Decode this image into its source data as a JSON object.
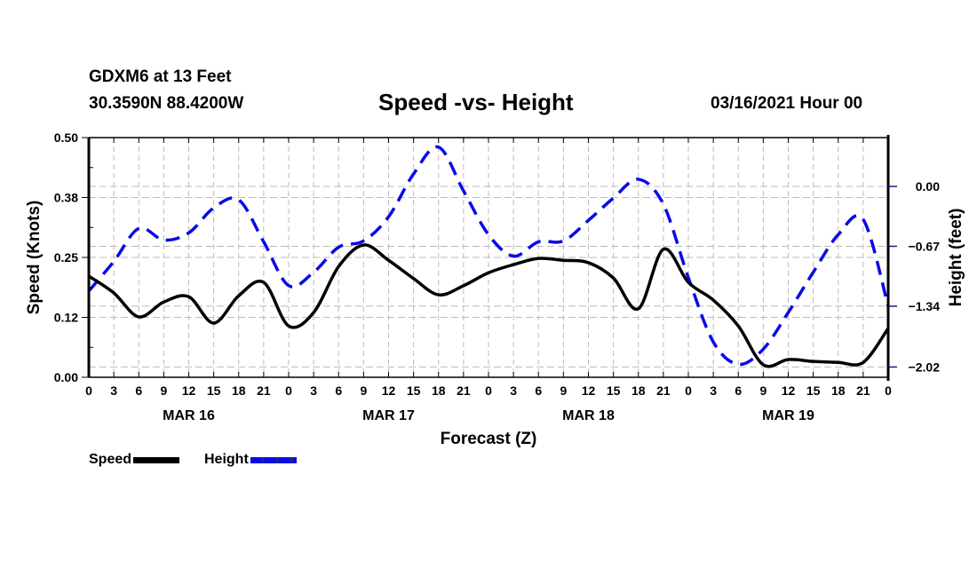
{
  "header": {
    "station": "GDXM6 at 13 Feet",
    "coords": "30.3590N 88.4200W",
    "title": "Speed -vs- Height",
    "datetime": "03/16/2021 Hour 00"
  },
  "colors": {
    "speed": "#000000",
    "height": "#0a0ae6",
    "grid": "#bbbbbb"
  },
  "chart_data": {
    "type": "line",
    "title": "Speed -vs- Height",
    "xlabel": "Forecast (Z)",
    "ylabel": "Speed (Knots)",
    "y2label": "Height (feet)",
    "x_unit": "forecast hour from 03/16/2021 00Z",
    "xlim": [
      0,
      96
    ],
    "ylim": [
      0.0,
      0.5
    ],
    "y2lim": [
      -2.135,
      0.546
    ],
    "grid": true,
    "legend": "bottom-left",
    "x_tick_labels": [
      "0",
      "3",
      "6",
      "9",
      "12",
      "15",
      "18",
      "21",
      "0",
      "3",
      "6",
      "9",
      "12",
      "15",
      "18",
      "21",
      "0",
      "3",
      "6",
      "9",
      "12",
      "15",
      "18",
      "21",
      "0",
      "3",
      "6",
      "9",
      "12",
      "15",
      "18",
      "21",
      "0"
    ],
    "date_labels": [
      {
        "label": "MAR 16",
        "hour": 12
      },
      {
        "label": "MAR 17",
        "hour": 36
      },
      {
        "label": "MAR 18",
        "hour": 60
      },
      {
        "label": "MAR 19",
        "hour": 84
      }
    ],
    "y_ticks": [
      0.0,
      0.125,
      0.25,
      0.375,
      0.5
    ],
    "y_tick_labels": [
      "0.00",
      "0.12",
      "0.25",
      "0.38",
      "0.50"
    ],
    "y2_ticks": [
      0.0,
      -0.67,
      -1.34,
      -2.02
    ],
    "y2_tick_labels": [
      "0.00",
      "−0.67",
      "−1.34",
      "−2.02"
    ],
    "x": [
      0,
      3,
      6,
      9,
      12,
      15,
      18,
      21,
      24,
      27,
      30,
      33,
      36,
      39,
      42,
      45,
      48,
      51,
      54,
      57,
      60,
      63,
      66,
      69,
      72,
      75,
      78,
      81,
      84,
      87,
      90,
      93,
      96
    ],
    "series": [
      {
        "name": "Speed",
        "axis": "left",
        "style": "solid",
        "values": [
          0.211,
          0.176,
          0.126,
          0.157,
          0.168,
          0.113,
          0.17,
          0.198,
          0.107,
          0.135,
          0.231,
          0.276,
          0.244,
          0.206,
          0.172,
          0.191,
          0.218,
          0.235,
          0.248,
          0.244,
          0.239,
          0.207,
          0.143,
          0.267,
          0.198,
          0.161,
          0.107,
          0.026,
          0.037,
          0.033,
          0.031,
          0.031,
          0.102
        ]
      },
      {
        "name": "Height",
        "axis": "right",
        "style": "dashed",
        "values": [
          -1.17,
          -0.84,
          -0.47,
          -0.6,
          -0.52,
          -0.24,
          -0.15,
          -0.62,
          -1.11,
          -0.96,
          -0.68,
          -0.61,
          -0.34,
          0.14,
          0.44,
          -0.05,
          -0.54,
          -0.78,
          -0.62,
          -0.61,
          -0.38,
          -0.13,
          0.08,
          -0.2,
          -1.02,
          -1.74,
          -1.99,
          -1.82,
          -1.41,
          -0.96,
          -0.54,
          -0.37,
          -1.34
        ]
      }
    ]
  },
  "legend": {
    "speed_label": "Speed",
    "height_label": "Height"
  }
}
